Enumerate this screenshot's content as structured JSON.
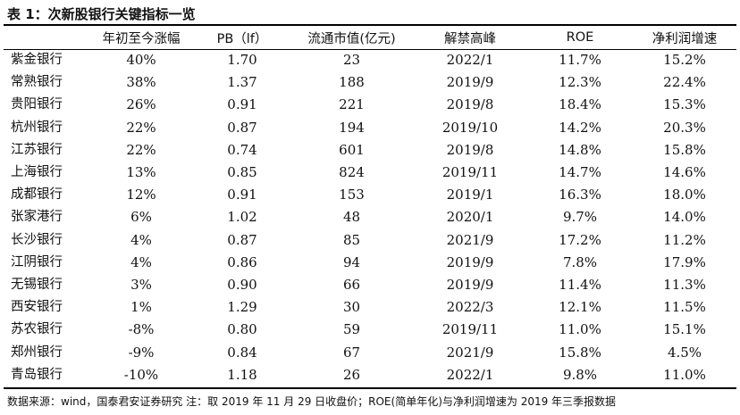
{
  "title": "表 1：次新股银行关键指标一览",
  "headers": [
    "",
    "年初至今涨幅",
    "PB（lf）",
    "流通市值(亿元)",
    "解禁高峰",
    "ROE",
    "净利润增速"
  ],
  "rows": [
    [
      "紫金银行",
      "40%",
      "1.70",
      "23",
      "2022/1",
      "11.7%",
      "15.2%"
    ],
    [
      "常熟银行",
      "38%",
      "1.37",
      "188",
      "2019/9",
      "12.3%",
      "22.4%"
    ],
    [
      "贵阳银行",
      "26%",
      "0.91",
      "221",
      "2019/8",
      "18.4%",
      "15.3%"
    ],
    [
      "杭州银行",
      "22%",
      "0.87",
      "194",
      "2019/10",
      "14.2%",
      "20.3%"
    ],
    [
      "江苏银行",
      "22%",
      "0.74",
      "601",
      "2019/8",
      "14.8%",
      "15.8%"
    ],
    [
      "上海银行",
      "13%",
      "0.85",
      "824",
      "2019/11",
      "14.7%",
      "14.6%"
    ],
    [
      "成都银行",
      "12%",
      "0.91",
      "153",
      "2019/1",
      "16.3%",
      "18.0%"
    ],
    [
      "张家港行",
      "6%",
      "1.02",
      "48",
      "2020/1",
      "9.7%",
      "14.0%"
    ],
    [
      "长沙银行",
      "4%",
      "0.87",
      "85",
      "2021/9",
      "17.2%",
      "11.2%"
    ],
    [
      "江阴银行",
      "4%",
      "0.86",
      "94",
      "2019/9",
      "7.8%",
      "17.9%"
    ],
    [
      "无锡银行",
      "3%",
      "0.90",
      "66",
      "2019/9",
      "11.4%",
      "11.3%"
    ],
    [
      "西安银行",
      "1%",
      "1.29",
      "30",
      "2022/3",
      "12.1%",
      "11.5%"
    ],
    [
      "苏农银行",
      "-8%",
      "0.80",
      "59",
      "2019/11",
      "11.0%",
      "15.1%"
    ],
    [
      "郑州银行",
      "-9%",
      "0.84",
      "67",
      "2021/9",
      "15.8%",
      "4.5%"
    ],
    [
      "青岛银行",
      "-10%",
      "1.18",
      "26",
      "2022/1",
      "9.8%",
      "11.0%"
    ]
  ],
  "note": "数据来源：wind，国泰君安证券研究  注：取 2019 年 11 月 29 日收盘价；ROE(简单年化)与净利润增速为 2019 年三季报数据"
}
